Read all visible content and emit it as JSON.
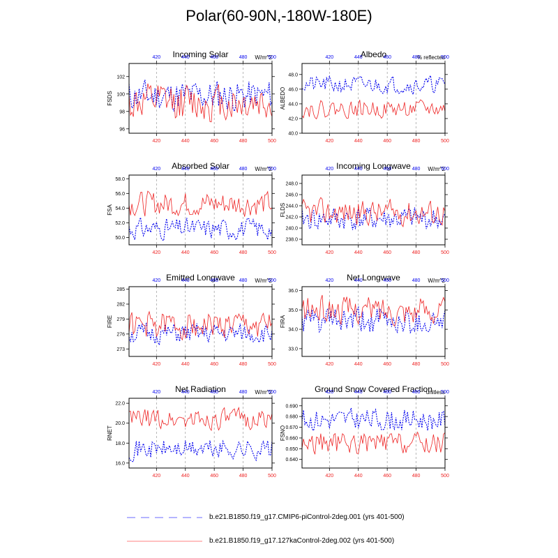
{
  "title": "Polar(60-90N,-180W-180E)",
  "colors": {
    "control": "#0000ee",
    "exp": "#ee2222"
  },
  "legend": [
    {
      "label": "b.e21.B1850.f19_g17.CMIP6-piControl-2deg.001 (yrs 401-500)",
      "style": "dashed",
      "color": "#6b6bff"
    },
    {
      "label": "b.e21.B1850.f19_g17.127kaControl-2deg.002 (yrs 401-500)",
      "style": "solid",
      "color": "#ff8080"
    }
  ],
  "chart_data": [
    {
      "type": "line",
      "title": "Incoming Solar",
      "units": "W/m^2",
      "ylabel": "FSDS",
      "xlim": [
        401,
        500
      ],
      "ylim": [
        95.5,
        103.5
      ],
      "yticks": [
        96,
        98,
        100,
        102
      ],
      "xticks": [
        420,
        440,
        460,
        480,
        500
      ],
      "ytick_format": "0",
      "series": [
        {
          "name": "control",
          "mean": 99.8,
          "amp": 1.4,
          "seed": 11
        },
        {
          "name": "127ka",
          "mean": 99.0,
          "amp": 1.7,
          "seed": 12
        }
      ]
    },
    {
      "type": "line",
      "title": "Albedo",
      "units": "% reflected",
      "ylabel": "ALBEDO",
      "xlim": [
        401,
        500
      ],
      "ylim": [
        40,
        49.5
      ],
      "yticks": [
        40.0,
        42.0,
        44.0,
        46.0,
        48.0
      ],
      "xticks": [
        420,
        440,
        460,
        480,
        500
      ],
      "ytick_format": "1",
      "series": [
        {
          "name": "control",
          "mean": 46.6,
          "amp": 0.9,
          "seed": 21
        },
        {
          "name": "127ka",
          "mean": 43.3,
          "amp": 0.9,
          "seed": 22
        }
      ]
    },
    {
      "type": "line",
      "title": "Absorbed Solar",
      "units": "W/m^2",
      "ylabel": "FSA",
      "xlim": [
        401,
        500
      ],
      "ylim": [
        49,
        58.5
      ],
      "yticks": [
        50.0,
        52.0,
        54.0,
        56.0,
        58.0
      ],
      "xticks": [
        420,
        440,
        460,
        480,
        500
      ],
      "ytick_format": "1",
      "series": [
        {
          "name": "control",
          "mean": 51.2,
          "amp": 1.1,
          "seed": 31
        },
        {
          "name": "127ka",
          "mean": 54.6,
          "amp": 1.3,
          "seed": 32
        }
      ]
    },
    {
      "type": "line",
      "title": "Incoming Longwave",
      "units": "W/m^2",
      "ylabel": "FLDS",
      "xlim": [
        401,
        500
      ],
      "ylim": [
        237,
        249.5
      ],
      "yticks": [
        238.0,
        240.0,
        242.0,
        244.0,
        246.0,
        248.0
      ],
      "xticks": [
        420,
        440,
        460,
        480,
        500
      ],
      "ytick_format": "1",
      "series": [
        {
          "name": "control",
          "mean": 241.6,
          "amp": 1.7,
          "seed": 41
        },
        {
          "name": "127ka",
          "mean": 242.8,
          "amp": 1.8,
          "seed": 42
        }
      ]
    },
    {
      "type": "line",
      "title": "Emitted Longwave",
      "units": "W/m^2",
      "ylabel": "FIRE",
      "xlim": [
        401,
        500
      ],
      "ylim": [
        271.5,
        285.5
      ],
      "yticks": [
        273,
        276,
        279,
        282,
        285
      ],
      "xticks": [
        420,
        440,
        460,
        480,
        500
      ],
      "ytick_format": "0",
      "series": [
        {
          "name": "control",
          "mean": 276.0,
          "amp": 1.6,
          "seed": 51
        },
        {
          "name": "127ka",
          "mean": 277.8,
          "amp": 2.1,
          "seed": 52
        }
      ]
    },
    {
      "type": "line",
      "title": "Net Longwave",
      "units": "W/m^2",
      "ylabel": "FIRA",
      "xlim": [
        401,
        500
      ],
      "ylim": [
        32.6,
        36.2
      ],
      "yticks": [
        33.0,
        34.0,
        35.0,
        36.0
      ],
      "xticks": [
        420,
        440,
        460,
        480,
        500
      ],
      "ytick_format": "1",
      "series": [
        {
          "name": "control",
          "mean": 34.4,
          "amp": 0.55,
          "seed": 61
        },
        {
          "name": "127ka",
          "mean": 35.0,
          "amp": 0.55,
          "seed": 62
        }
      ]
    },
    {
      "type": "line",
      "title": "Net Radiation",
      "units": "W/m^2",
      "ylabel": "RNET",
      "xlim": [
        401,
        500
      ],
      "ylim": [
        15.5,
        22.5
      ],
      "yticks": [
        16.0,
        18.0,
        20.0,
        22.0
      ],
      "xticks": [
        420,
        440,
        460,
        480,
        500
      ],
      "ytick_format": "1",
      "series": [
        {
          "name": "control",
          "mean": 17.4,
          "amp": 0.8,
          "seed": 71
        },
        {
          "name": "127ka",
          "mean": 20.4,
          "amp": 0.8,
          "seed": 72
        }
      ]
    },
    {
      "type": "line",
      "title": "Ground Snow Covered Fraction",
      "units": "unitless",
      "ylabel": "FSNO",
      "xlim": [
        401,
        500
      ],
      "ylim": [
        0.632,
        0.697
      ],
      "yticks": [
        0.64,
        0.65,
        0.66,
        0.67,
        0.68,
        0.69
      ],
      "xticks": [
        420,
        440,
        460,
        480,
        500
      ],
      "ytick_format": "3",
      "series": [
        {
          "name": "control",
          "mean": 0.677,
          "amp": 0.008,
          "seed": 81
        },
        {
          "name": "127ka",
          "mean": 0.655,
          "amp": 0.008,
          "seed": 82
        }
      ]
    }
  ]
}
